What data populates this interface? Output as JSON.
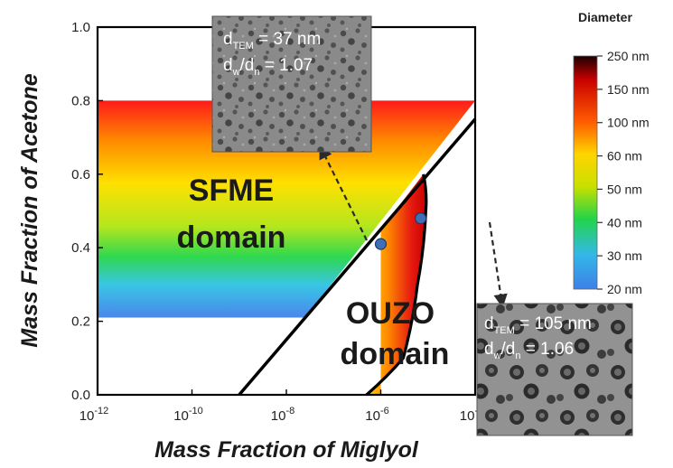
{
  "chart_data": {
    "type": "area",
    "title": "",
    "xlabel": "Mass Fraction of Miglyol",
    "ylabel": "Mass Fraction of Acetone",
    "x_scale": "log",
    "xlim": [
      1e-12,
      0.0001
    ],
    "ylim": [
      0.0,
      1.0
    ],
    "x_ticks": [
      {
        "value": 1e-12,
        "base": "10",
        "exp": "-12"
      },
      {
        "value": 1e-10,
        "base": "10",
        "exp": "-10"
      },
      {
        "value": 1e-08,
        "base": "10",
        "exp": "-8"
      },
      {
        "value": 1e-06,
        "base": "10",
        "exp": "-6"
      },
      {
        "value": 0.0001,
        "base": "10",
        "exp": "-4"
      }
    ],
    "y_ticks": [
      {
        "value": 0.0,
        "label": "0.0"
      },
      {
        "value": 0.2,
        "label": "0.2"
      },
      {
        "value": 0.4,
        "label": "0.4"
      },
      {
        "value": 0.6,
        "label": "0.6"
      },
      {
        "value": 0.8,
        "label": "0.8"
      },
      {
        "value": 1.0,
        "label": "1.0"
      }
    ],
    "regions": [
      {
        "name": "SFME domain",
        "lines": [
          "SFME",
          "domain"
        ],
        "text_color": "#1a1a1a",
        "y_range": [
          0.21,
          0.8
        ]
      },
      {
        "name": "OUZO domain",
        "lines": [
          "OUZO",
          "domain"
        ],
        "text_color": "#ffffff"
      }
    ],
    "boundary_line": {
      "x": [
        1e-09,
        0.0001
      ],
      "y": [
        0.0,
        0.75
      ]
    },
    "ouzo_right_boundary": {
      "x": [
        5e-07,
        3e-06,
        6e-06,
        9e-06,
        8e-06
      ],
      "y": [
        0.0,
        0.1,
        0.3,
        0.5,
        0.6
      ]
    },
    "points": [
      {
        "x": 1e-06,
        "y": 0.41
      },
      {
        "x": 7e-06,
        "y": 0.48
      }
    ],
    "colorbar": {
      "title": "Diameter",
      "ticks": [
        "250 nm",
        "150 nm",
        "100 nm",
        "60 nm",
        "50 nm",
        "40 nm",
        "30 nm",
        "20 nm"
      ],
      "colors": [
        "#1a0000",
        "#e21212",
        "#ff8a00",
        "#ffd800",
        "#c8e000",
        "#22d44a",
        "#33b8e8",
        "#3c80e8"
      ]
    },
    "insets": [
      {
        "line1_main": "d",
        "line1_sub": "TEM",
        "line1_rest": " = 37 nm",
        "line2_a": "d",
        "line2_sub_a": "w",
        "line2_mid": "/d",
        "line2_sub_b": "n",
        "line2_rest": " = 1.07"
      },
      {
        "line1_main": "d",
        "line1_sub": "TEM",
        "line1_rest": " = 105 nm",
        "line2_a": "d",
        "line2_sub_a": "w",
        "line2_mid": "/d",
        "line2_sub_b": "n",
        "line2_rest": " = 1.06"
      }
    ]
  }
}
